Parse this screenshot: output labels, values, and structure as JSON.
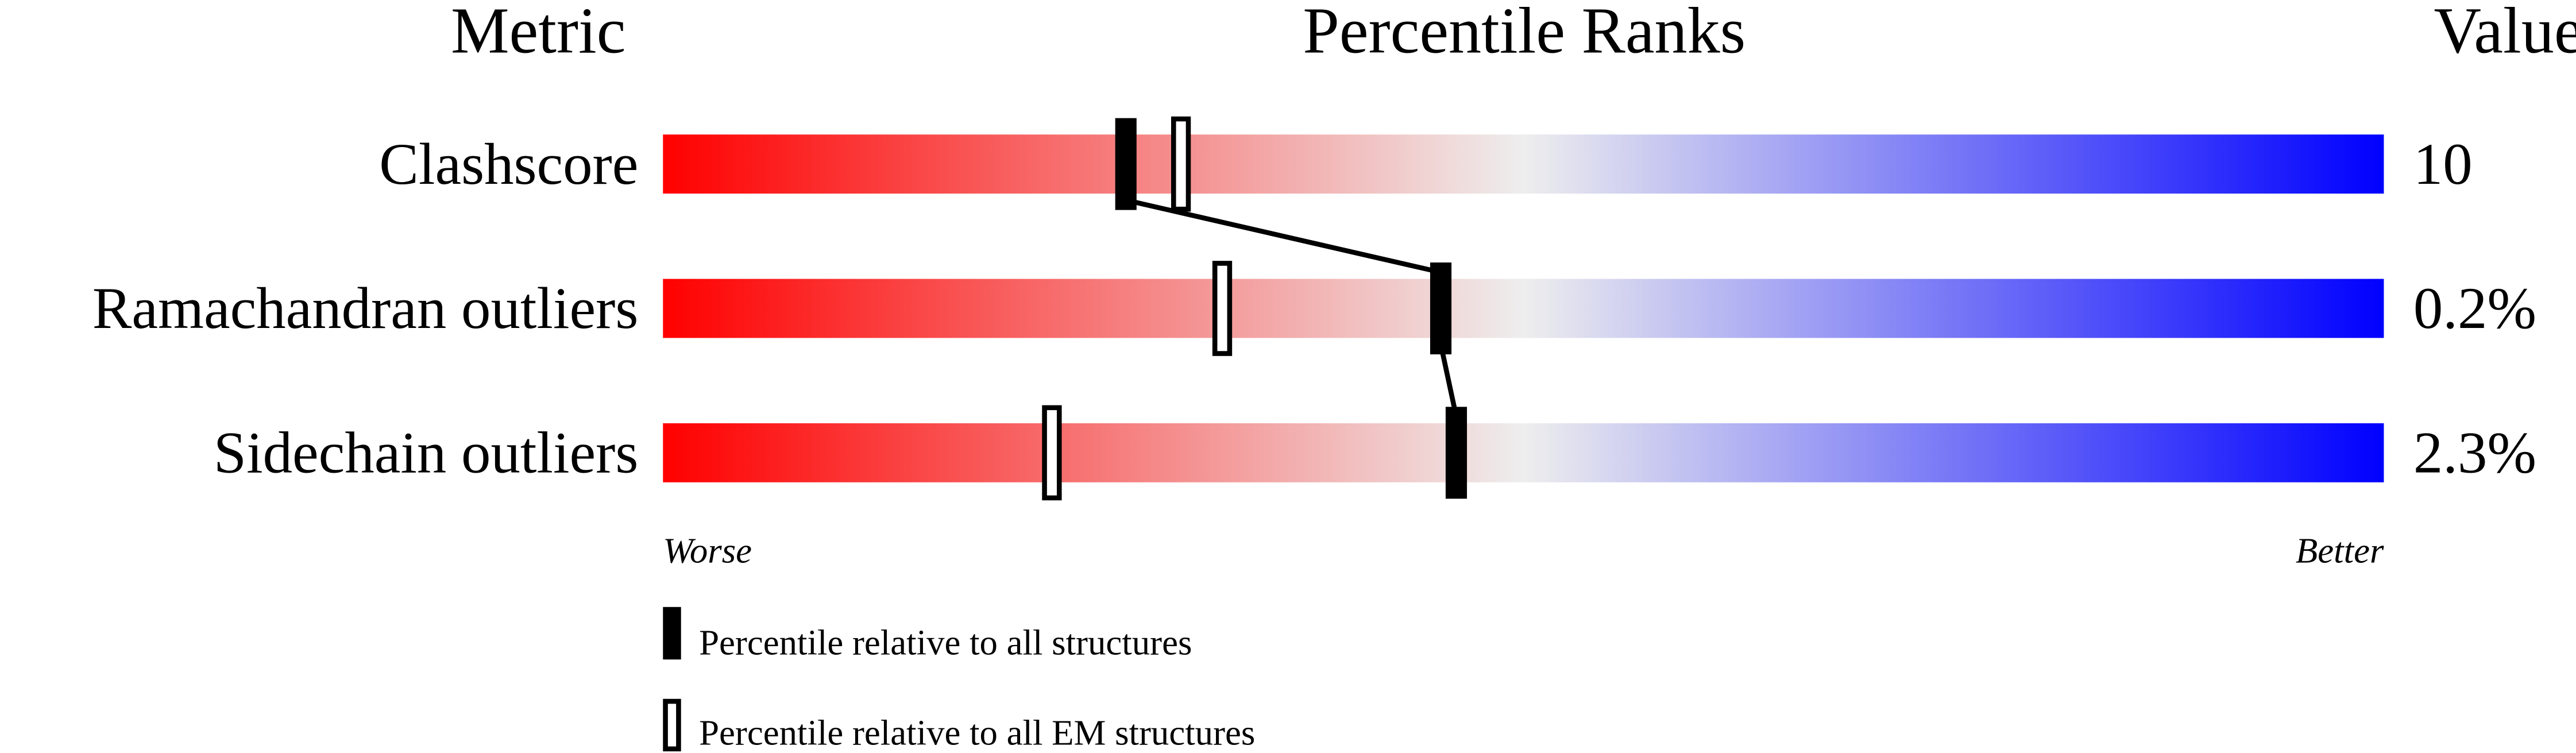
{
  "chart_data": {
    "type": "percentile-slider",
    "headers": {
      "metric": "Metric",
      "title": "Percentile Ranks",
      "value": "Value"
    },
    "axis": {
      "left_label": "Worse",
      "right_label": "Better",
      "range": [
        0,
        100
      ]
    },
    "gradient_colors": [
      "#ff0000",
      "#eeeeee",
      "#0000ff"
    ],
    "rows": [
      {
        "metric": "Clashscore",
        "value": "10",
        "percentile_all": 26.9,
        "percentile_em": 30.1
      },
      {
        "metric": "Ramachandran outliers",
        "value": "0.2%",
        "percentile_all": 45.2,
        "percentile_em": 32.5
      },
      {
        "metric": "Sidechain outliers",
        "value": "2.3%",
        "percentile_all": 46.1,
        "percentile_em": 22.6
      }
    ],
    "legend": [
      {
        "marker": "filled",
        "label": "Percentile relative to all structures"
      },
      {
        "marker": "open",
        "label": "Percentile relative to all EM structures"
      }
    ]
  }
}
